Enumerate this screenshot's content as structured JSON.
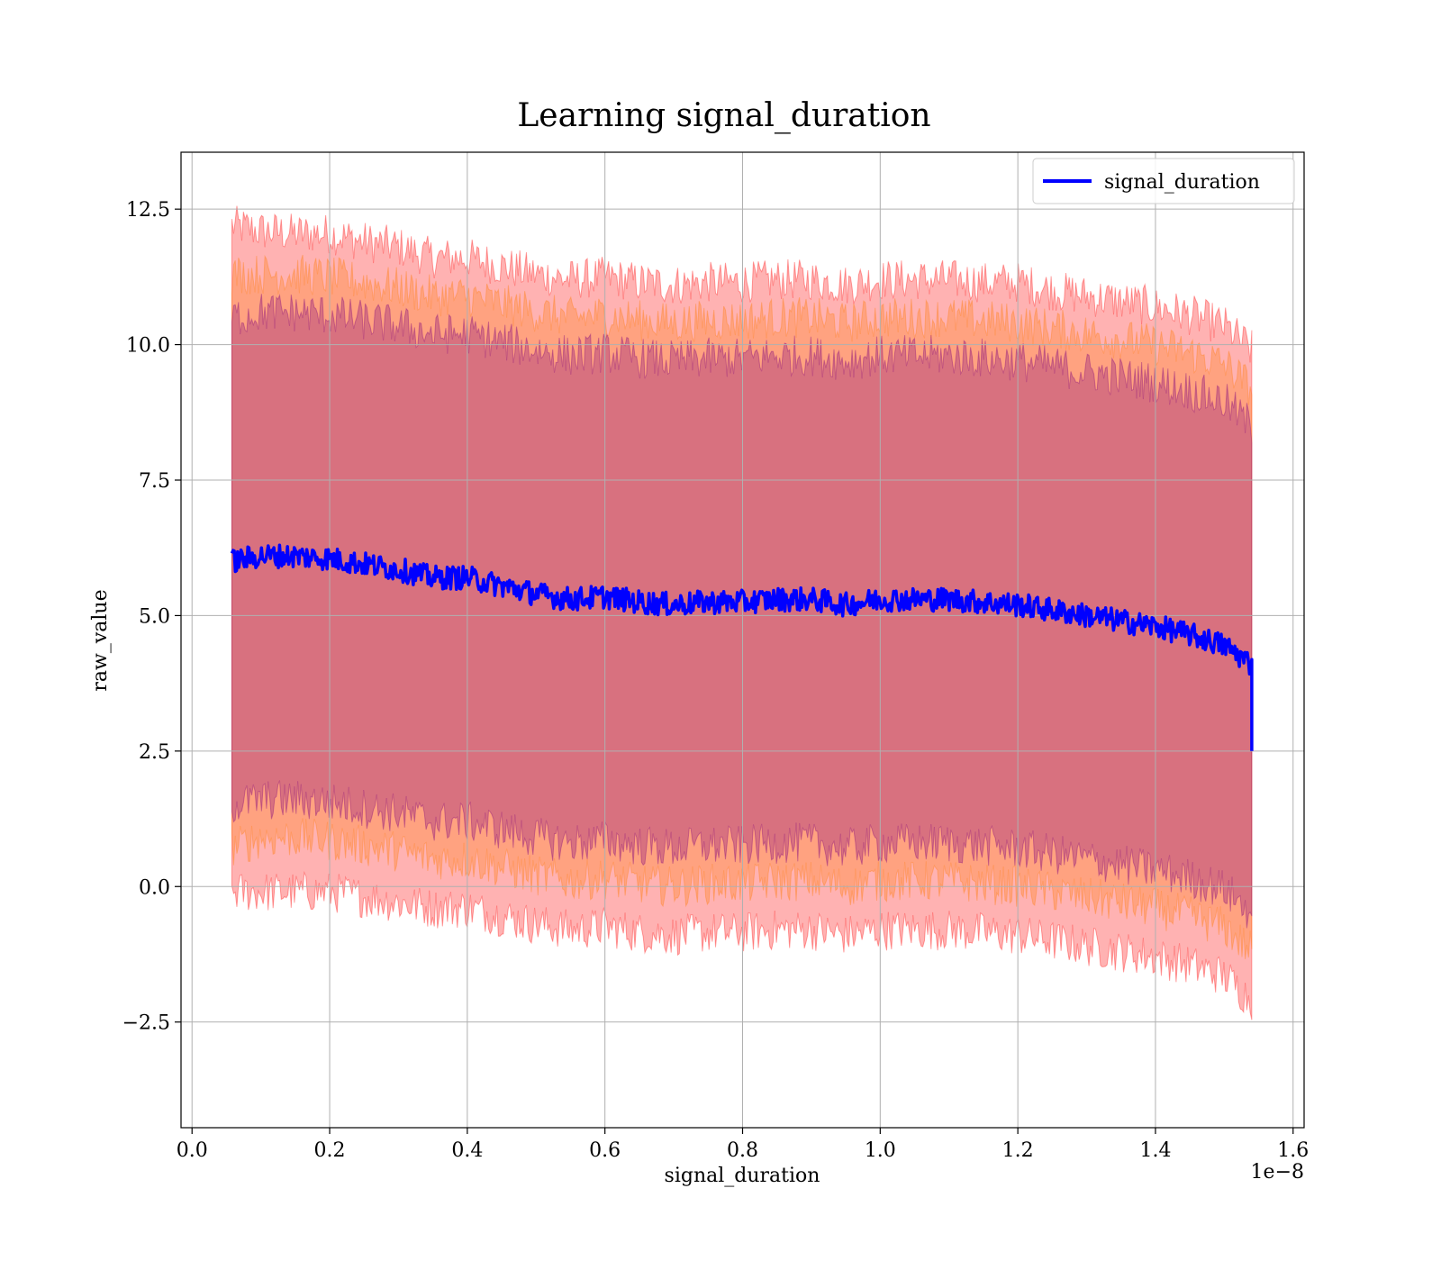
{
  "chart_data": {
    "type": "line",
    "title": "Learning signal_duration",
    "xlabel": "signal_duration",
    "ylabel": "raw_value",
    "x_offset_label": "1e−8",
    "xlim": [
      -0.016,
      1.616
    ],
    "ylim": [
      -4.45,
      13.55
    ],
    "x_ticks": [
      0.0,
      0.2,
      0.4,
      0.6,
      0.8,
      1.0,
      1.2,
      1.4,
      1.6
    ],
    "x_tick_labels": [
      "0.0",
      "0.2",
      "0.4",
      "0.6",
      "0.8",
      "1.0",
      "1.2",
      "1.4",
      "1.6"
    ],
    "y_ticks": [
      -2.5,
      0.0,
      2.5,
      5.0,
      7.5,
      10.0,
      12.5
    ],
    "y_tick_labels": [
      "−2.5",
      "0.0",
      "2.5",
      "5.0",
      "7.5",
      "10.0",
      "12.5"
    ],
    "grid": true,
    "legend_position": "top-right",
    "series": [
      {
        "name": "signal_duration",
        "color": "#0000ff",
        "x": [
          0.058,
          0.1,
          0.15,
          0.2,
          0.25,
          0.3,
          0.35,
          0.4,
          0.45,
          0.5,
          0.55,
          0.6,
          0.65,
          0.7,
          0.75,
          0.8,
          0.85,
          0.9,
          0.95,
          1.0,
          1.05,
          1.1,
          1.15,
          1.2,
          1.25,
          1.3,
          1.35,
          1.4,
          1.45,
          1.5,
          1.54
        ],
        "y": [
          6.0,
          6.1,
          6.1,
          6.05,
          5.95,
          5.85,
          5.7,
          5.7,
          5.55,
          5.4,
          5.3,
          5.35,
          5.25,
          5.2,
          5.25,
          5.25,
          5.3,
          5.3,
          5.2,
          5.3,
          5.3,
          5.3,
          5.25,
          5.2,
          5.1,
          5.0,
          4.9,
          4.8,
          4.65,
          4.45,
          4.1
        ]
      }
    ],
    "bands": [
      {
        "kind": "outer-band",
        "color": "#ff0000",
        "x": [
          0.058,
          0.1,
          0.15,
          0.2,
          0.25,
          0.3,
          0.35,
          0.4,
          0.45,
          0.5,
          0.55,
          0.6,
          0.65,
          0.7,
          0.75,
          0.8,
          0.85,
          0.9,
          0.95,
          1.0,
          1.05,
          1.1,
          1.15,
          1.2,
          1.25,
          1.3,
          1.35,
          1.4,
          1.45,
          1.5,
          1.54
        ],
        "upper": [
          12.2,
          12.1,
          12.05,
          12.05,
          11.9,
          11.8,
          11.6,
          11.6,
          11.45,
          11.3,
          11.2,
          11.25,
          11.15,
          11.1,
          11.15,
          11.15,
          11.2,
          11.2,
          11.1,
          11.2,
          11.2,
          11.2,
          11.15,
          11.15,
          11.0,
          10.9,
          10.8,
          10.7,
          10.55,
          10.35,
          9.9
        ],
        "lower": [
          -0.1,
          -0.1,
          -0.1,
          -0.1,
          -0.2,
          -0.3,
          -0.4,
          -0.4,
          -0.55,
          -0.7,
          -0.8,
          -0.75,
          -0.85,
          -0.9,
          -0.85,
          -0.85,
          -0.8,
          -0.8,
          -0.9,
          -0.8,
          -0.8,
          -0.8,
          -0.85,
          -0.9,
          -1.0,
          -1.1,
          -1.2,
          -1.3,
          -1.45,
          -1.65,
          -2.1
        ]
      },
      {
        "kind": "middle-band",
        "color": "#ff7f0e",
        "x": [
          0.058,
          0.1,
          0.15,
          0.2,
          0.25,
          0.3,
          0.35,
          0.4,
          0.45,
          0.5,
          0.55,
          0.6,
          0.65,
          0.7,
          0.75,
          0.8,
          0.85,
          0.9,
          0.95,
          1.0,
          1.05,
          1.1,
          1.15,
          1.2,
          1.25,
          1.3,
          1.35,
          1.4,
          1.45,
          1.5,
          1.54
        ],
        "upper": [
          11.3,
          11.3,
          11.3,
          11.25,
          11.15,
          11.05,
          10.9,
          10.9,
          10.75,
          10.6,
          10.5,
          10.55,
          10.45,
          10.4,
          10.45,
          10.45,
          10.5,
          10.5,
          10.4,
          10.5,
          10.5,
          10.5,
          10.45,
          10.4,
          10.3,
          10.2,
          10.1,
          10.0,
          9.85,
          9.65,
          9.2
        ],
        "lower": [
          0.7,
          0.9,
          0.9,
          0.85,
          0.75,
          0.65,
          0.5,
          0.5,
          0.35,
          0.2,
          0.1,
          0.15,
          0.05,
          0.0,
          0.05,
          0.05,
          0.1,
          0.1,
          0.0,
          0.1,
          0.1,
          0.1,
          0.05,
          0.0,
          -0.1,
          -0.2,
          -0.3,
          -0.4,
          -0.55,
          -0.75,
          -1.2
        ]
      },
      {
        "kind": "inner-band",
        "color": "#7f007f",
        "x": [
          0.058,
          0.1,
          0.15,
          0.2,
          0.25,
          0.3,
          0.35,
          0.4,
          0.45,
          0.5,
          0.55,
          0.6,
          0.65,
          0.7,
          0.75,
          0.8,
          0.85,
          0.9,
          0.95,
          1.0,
          1.05,
          1.1,
          1.15,
          1.2,
          1.25,
          1.3,
          1.35,
          1.4,
          1.45,
          1.5,
          1.54
        ],
        "upper": [
          10.5,
          10.6,
          10.6,
          10.55,
          10.45,
          10.35,
          10.2,
          10.2,
          10.05,
          9.9,
          9.8,
          9.85,
          9.75,
          9.7,
          9.75,
          9.75,
          9.8,
          9.8,
          9.7,
          9.8,
          9.8,
          9.8,
          9.75,
          9.7,
          9.6,
          9.5,
          9.4,
          9.3,
          9.15,
          8.95,
          8.5
        ],
        "lower": [
          1.5,
          1.6,
          1.6,
          1.55,
          1.45,
          1.35,
          1.2,
          1.2,
          1.05,
          0.9,
          0.8,
          0.85,
          0.75,
          0.7,
          0.75,
          0.75,
          0.8,
          0.8,
          0.7,
          0.8,
          0.8,
          0.8,
          0.75,
          0.7,
          0.6,
          0.5,
          0.4,
          0.3,
          0.15,
          -0.05,
          -0.5
        ]
      }
    ]
  }
}
